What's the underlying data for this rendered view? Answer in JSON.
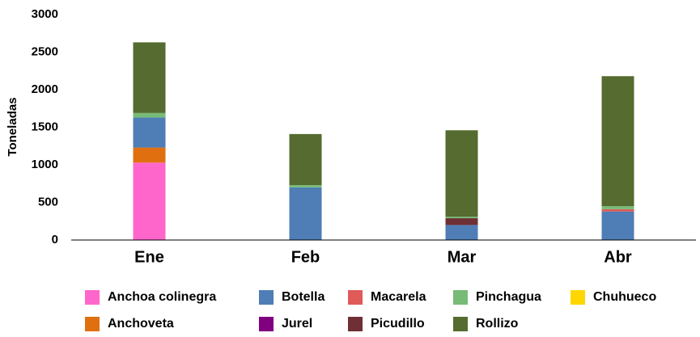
{
  "chart_data": {
    "type": "stacked_bar",
    "y_label": "Toneladas",
    "categories": [
      "Ene",
      "Feb",
      "Mar",
      "Abr"
    ],
    "series": [
      {
        "name": "Anchoa colinegra",
        "color": "#ff66cc",
        "values": [
          1030,
          0,
          0,
          0
        ]
      },
      {
        "name": "Anchoveta",
        "color": "#e0700f",
        "values": [
          200,
          0,
          0,
          0
        ]
      },
      {
        "name": "Botella",
        "color": "#4f7db5",
        "values": [
          400,
          700,
          200,
          380
        ]
      },
      {
        "name": "Jurel",
        "color": "#800080",
        "values": [
          0,
          0,
          0,
          0
        ]
      },
      {
        "name": "Macarela",
        "color": "#e05a5a",
        "values": [
          0,
          0,
          0,
          30
        ]
      },
      {
        "name": "Picudillo",
        "color": "#6e2f35",
        "values": [
          0,
          0,
          90,
          0
        ]
      },
      {
        "name": "Pinchagua",
        "color": "#77bb77",
        "values": [
          60,
          30,
          20,
          40
        ]
      },
      {
        "name": "Rollizo",
        "color": "#566b2f",
        "values": [
          940,
          680,
          1150,
          1730
        ]
      },
      {
        "name": "Chuhueco",
        "color": "#ffd700",
        "values": [
          0,
          0,
          0,
          0
        ]
      }
    ],
    "ylim": [
      0,
      3000
    ],
    "yticks": [
      0,
      500,
      1000,
      1500,
      2000,
      2500,
      3000
    ],
    "grid": false
  }
}
